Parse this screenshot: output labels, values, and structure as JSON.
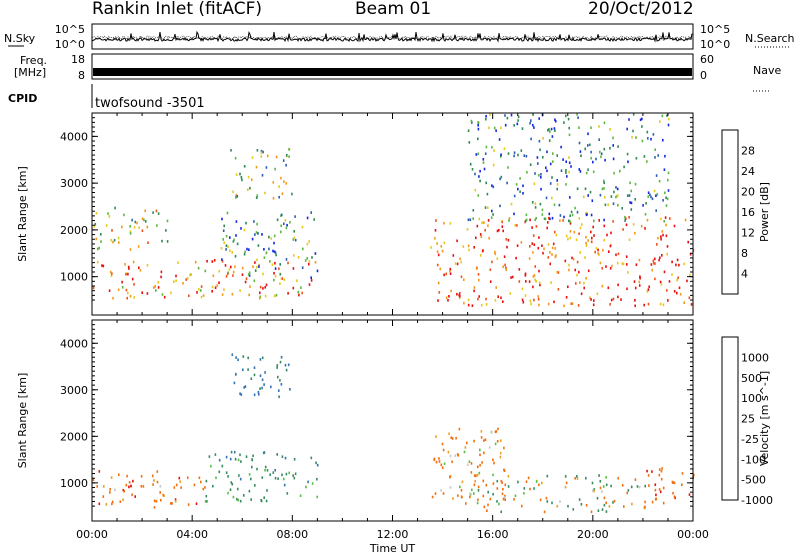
{
  "header": {
    "station": "Rankin Inlet (fitACF)",
    "beam": "Beam 01",
    "date": "20/Oct/2012"
  },
  "panels": {
    "nsky_label": "N.Sky",
    "nsearch_label": "N.Search",
    "noise_ticks": [
      "10^5",
      "10^0"
    ],
    "freq_label_1": "Freq.",
    "freq_label_2": "[MHz]",
    "freq_ticks": [
      "18",
      "8"
    ],
    "nave_label": "Nave",
    "nave_ticks": [
      "60",
      "0"
    ],
    "cpid_label": "CPID",
    "cpid_value": "twofsound -3501"
  },
  "chart_data": [
    {
      "type": "heatmap",
      "name_on_scale": "Power [dB]",
      "ylabel": "Slant Range [km]",
      "xlabel": "Time UT",
      "x_ticks": [
        "00:00",
        "04:00",
        "08:00",
        "12:00",
        "16:00",
        "20:00",
        "00:00"
      ],
      "y_ticks": [
        1000,
        2000,
        3000,
        4000
      ],
      "xlim_hours": [
        0,
        24
      ],
      "ylim_km": [
        180,
        4500
      ],
      "colorbar_ticks": [
        "4",
        "8",
        "12",
        "16",
        "20",
        "24",
        "28"
      ],
      "colorbar_colors": [
        "#1428e0",
        "#2a5fb0",
        "#2f8a52",
        "#5cb840",
        "#e8c81c",
        "#f39a1c",
        "#f0521c",
        "#e81010"
      ],
      "echo_regions": [
        {
          "t0": 0.0,
          "t1": 9.0,
          "r0": 550,
          "r1": 1400,
          "value_db": 24
        },
        {
          "t0": 0.0,
          "t1": 3.0,
          "r0": 1600,
          "r1": 2500,
          "value_db": 16
        },
        {
          "t0": 5.0,
          "t1": 9.0,
          "r0": 1000,
          "r1": 2400,
          "value_db": 10
        },
        {
          "t0": 5.5,
          "t1": 8.0,
          "r0": 2700,
          "r1": 3800,
          "value_db": 14
        },
        {
          "t0": 13.5,
          "t1": 24.0,
          "r0": 400,
          "r1": 2300,
          "value_db": 26
        },
        {
          "t0": 15.0,
          "t1": 23.0,
          "r0": 2200,
          "r1": 4500,
          "value_db": 8
        }
      ]
    },
    {
      "type": "heatmap",
      "name_on_scale": "Velocity [m s^-1]",
      "ylabel": "Slant Range [km]",
      "xlabel": "Time UT",
      "x_ticks": [
        "00:00",
        "04:00",
        "08:00",
        "12:00",
        "16:00",
        "20:00",
        "00:00"
      ],
      "y_ticks": [
        1000,
        2000,
        3000,
        4000
      ],
      "xlim_hours": [
        0,
        24
      ],
      "ylim_km": [
        180,
        4500
      ],
      "colorbar_ticks": [
        "1000",
        "500",
        "100",
        "25",
        "-25",
        "-100",
        "-500",
        "-1000"
      ],
      "colorbar_colors": [
        "#2a4fc0",
        "#3573b0",
        "#3a8a60",
        "#58c040",
        "#c8c8c8",
        "#f0a020",
        "#f07010",
        "#e81010"
      ],
      "echo_regions": [
        {
          "t0": 0.0,
          "t1": 4.5,
          "r0": 500,
          "r1": 1300,
          "value_ms": -300
        },
        {
          "t0": 4.5,
          "t1": 9.0,
          "r0": 600,
          "r1": 1700,
          "value_ms": 300
        },
        {
          "t0": 5.5,
          "t1": 8.0,
          "r0": 2800,
          "r1": 3800,
          "value_ms": 600
        },
        {
          "t0": 13.5,
          "t1": 16.5,
          "r0": 500,
          "r1": 2200,
          "value_ms": -200
        },
        {
          "t0": 15.0,
          "t1": 22.5,
          "r0": 400,
          "r1": 1200,
          "value_ms": 0
        },
        {
          "t0": 22.0,
          "t1": 24.0,
          "r0": 500,
          "r1": 1400,
          "value_ms": -400
        }
      ]
    }
  ]
}
